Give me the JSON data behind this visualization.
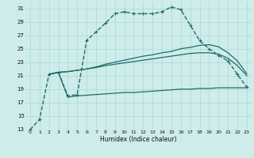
{
  "xlabel": "Humidex (Indice chaleur)",
  "bg_color": "#ceecea",
  "grid_color": "#a8d8d5",
  "line_color": "#1e6b6b",
  "xlim": [
    -0.5,
    23.5
  ],
  "ylim": [
    13,
    32
  ],
  "yticks": [
    13,
    15,
    17,
    19,
    21,
    23,
    25,
    27,
    29,
    31
  ],
  "xticks": [
    0,
    1,
    2,
    3,
    4,
    5,
    6,
    7,
    8,
    9,
    10,
    11,
    12,
    13,
    14,
    15,
    16,
    17,
    18,
    19,
    20,
    21,
    22,
    23
  ],
  "series": [
    {
      "x": [
        0,
        1,
        2,
        3,
        4,
        5,
        6,
        7,
        8,
        9,
        10,
        11,
        12,
        13,
        14,
        15,
        16,
        17,
        18,
        19,
        20,
        21,
        22,
        23
      ],
      "y": [
        13.0,
        14.5,
        21.2,
        21.5,
        18.0,
        18.2,
        26.2,
        27.5,
        28.8,
        30.2,
        30.5,
        30.2,
        30.2,
        30.2,
        30.5,
        31.2,
        30.8,
        28.5,
        26.2,
        25.0,
        24.0,
        23.2,
        21.2,
        19.3
      ],
      "marker": "+",
      "dashed": true,
      "lw": 1.0
    },
    {
      "x": [
        2,
        3,
        4,
        5,
        6,
        7,
        8,
        9,
        10,
        11,
        12,
        13,
        14,
        15,
        16,
        17,
        18,
        19,
        20,
        21,
        22,
        23
      ],
      "y": [
        21.2,
        21.5,
        21.6,
        21.8,
        22.0,
        22.3,
        22.7,
        23.0,
        23.3,
        23.6,
        23.9,
        24.1,
        24.4,
        24.6,
        25.0,
        25.2,
        25.5,
        25.6,
        25.3,
        24.4,
        23.2,
        21.3
      ],
      "marker": null,
      "dashed": false,
      "lw": 0.9
    },
    {
      "x": [
        2,
        3,
        4,
        5,
        6,
        7,
        8,
        9,
        10,
        11,
        12,
        13,
        14,
        15,
        16,
        17,
        18,
        19,
        20,
        21,
        22,
        23
      ],
      "y": [
        21.2,
        21.5,
        21.6,
        21.8,
        22.0,
        22.2,
        22.5,
        22.7,
        22.9,
        23.1,
        23.3,
        23.5,
        23.7,
        23.9,
        24.1,
        24.3,
        24.4,
        24.4,
        24.2,
        23.6,
        22.5,
        21.0
      ],
      "marker": null,
      "dashed": false,
      "lw": 0.9
    },
    {
      "x": [
        2,
        3,
        4,
        5,
        6,
        7,
        8,
        9,
        10,
        11,
        12,
        13,
        14,
        15,
        16,
        17,
        18,
        19,
        20,
        21,
        22,
        23
      ],
      "y": [
        21.2,
        21.5,
        17.8,
        18.0,
        18.1,
        18.2,
        18.3,
        18.4,
        18.5,
        18.5,
        18.6,
        18.7,
        18.8,
        18.9,
        19.0,
        19.0,
        19.1,
        19.1,
        19.2,
        19.2,
        19.2,
        19.2
      ],
      "marker": null,
      "dashed": false,
      "lw": 0.9
    }
  ]
}
